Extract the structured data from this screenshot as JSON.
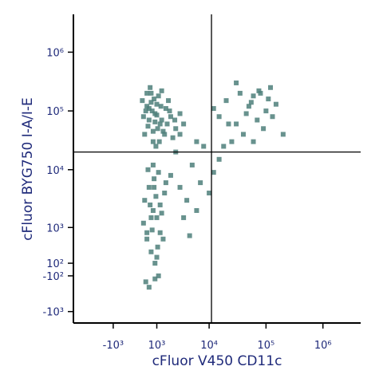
{
  "chart_data": {
    "type": "scatter",
    "x_label": "cFluor V450 CD11c",
    "y_label": "cFluor BYG750 I-A/I-E",
    "x_scale": "biexponential",
    "y_scale": "biexponential",
    "color": "#4d7f7a",
    "xlim": [
      -6000,
      4600000
    ],
    "ylim": [
      -1600,
      4400000
    ],
    "xticks": [
      {
        "value": -1000,
        "label": "-10³"
      },
      {
        "value": 1000,
        "label": "10³"
      },
      {
        "value": 10000,
        "label": "10⁴"
      },
      {
        "value": 100000,
        "label": "10⁵"
      },
      {
        "value": 1000000,
        "label": "10⁶"
      }
    ],
    "yticks": [
      {
        "value": -1000,
        "label": "-10³"
      },
      {
        "value": -100,
        "label": "-10²"
      },
      {
        "value": 100,
        "label": "10²"
      },
      {
        "value": 1000,
        "label": "10³"
      },
      {
        "value": 10000,
        "label": "10⁴"
      },
      {
        "value": 100000,
        "label": "10⁵"
      },
      {
        "value": 1000000,
        "label": "10⁶"
      }
    ],
    "gates": {
      "x": 11000,
      "y": 20000
    },
    "x": [
      300,
      500,
      700,
      900,
      1200,
      1600,
      2000,
      2500,
      400,
      600,
      800,
      1000,
      1400,
      1800,
      2200,
      3000,
      350,
      550,
      750,
      950,
      1100,
      1300,
      1500,
      1700,
      650,
      850,
      1050,
      1250,
      450,
      700,
      900,
      1150,
      1900,
      2400,
      3500,
      500,
      800,
      1000,
      1300,
      600,
      400,
      600,
      800,
      1000,
      1200,
      500,
      700,
      900,
      1100,
      1500,
      350,
      650,
      850,
      1050,
      1300,
      450,
      750,
      950,
      1400,
      550,
      800,
      1000,
      600,
      900,
      1200,
      700,
      500,
      850,
      1100,
      1600,
      2000,
      3000,
      4000,
      5000,
      6000,
      2500,
      3500,
      7000,
      8000,
      10000,
      4500,
      12000,
      3000,
      6000,
      15000,
      15000,
      20000,
      30000,
      50000,
      80000,
      100000,
      120000,
      40000,
      60000,
      25000,
      70000,
      150000,
      90000,
      35000,
      18000,
      45000,
      110000,
      12000,
      60000,
      200000,
      30000,
      75000,
      130000,
      22000,
      55000
    ],
    "values": [
      150000,
      120000,
      200000,
      90000,
      60000,
      110000,
      80000,
      50000,
      40000,
      70000,
      30000,
      130000,
      45000,
      150000,
      35000,
      90000,
      80000,
      55000,
      100000,
      25000,
      180000,
      70000,
      40000,
      60000,
      250000,
      160000,
      50000,
      120000,
      100000,
      140000,
      65000,
      30000,
      100000,
      70000,
      60000,
      200000,
      45000,
      85000,
      220000,
      110000,
      3000,
      5000,
      2000,
      1500,
      800,
      600,
      300,
      100,
      -100,
      4000,
      1200,
      2500,
      7000,
      400,
      1800,
      -200,
      900,
      3500,
      600,
      10000,
      12000,
      200,
      -300,
      -150,
      2500,
      1500,
      800,
      5000,
      9000,
      6000,
      8000,
      5000,
      3000,
      12000,
      2000,
      20000,
      1500,
      6000,
      25000,
      4000,
      700,
      9000,
      40000,
      30000,
      15000,
      80000,
      150000,
      60000,
      120000,
      200000,
      100000,
      250000,
      40000,
      180000,
      30000,
      70000,
      130000,
      50000,
      200000,
      25000,
      90000,
      160000,
      110000,
      30000,
      40000,
      300000,
      220000,
      80000,
      60000,
      140000
    ]
  }
}
